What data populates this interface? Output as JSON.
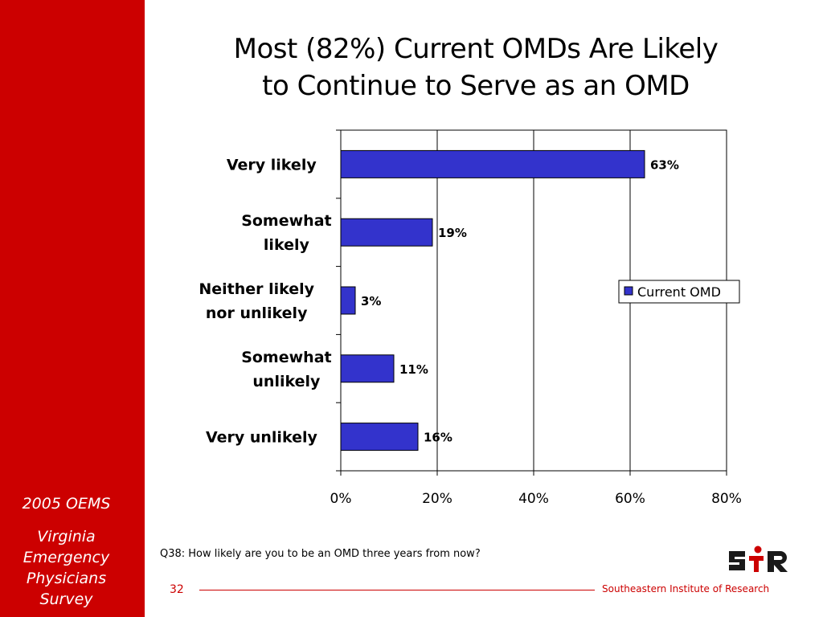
{
  "sidebar": {
    "title": "2005 OEMS",
    "subtitle_lines": [
      "Virginia",
      "Emergency",
      "Physicians",
      "Survey"
    ]
  },
  "slide": {
    "title_lines": [
      "Most (82%) Current OMDs Are Likely",
      "to Continue to Serve as an OMD"
    ]
  },
  "chart_data": {
    "type": "bar",
    "orientation": "horizontal",
    "categories": [
      [
        "Very likely"
      ],
      [
        "Somewhat",
        "likely"
      ],
      [
        "Neither likely",
        "nor unlikely"
      ],
      [
        "Somewhat",
        "unlikely"
      ],
      [
        "Very unlikely"
      ]
    ],
    "series": [
      {
        "name": "Current OMD",
        "values": [
          63,
          19,
          3,
          11,
          16
        ],
        "data_labels": [
          "63%",
          "19%",
          "3%",
          "11%",
          "16%"
        ]
      }
    ],
    "xlim": [
      0,
      80
    ],
    "x_ticks": [
      0,
      20,
      40,
      60,
      80
    ],
    "x_tick_labels": [
      "0%",
      "20%",
      "40%",
      "60%",
      "80%"
    ],
    "grid": "vertical",
    "legend_position": "right",
    "colors": {
      "bar": "#3333cc",
      "bar_stroke": "#000000"
    }
  },
  "footer": {
    "footnote": "Q38: How likely are you to be an OMD three years from now?",
    "page_number": "32",
    "organization": "Southeastern Institute of Research",
    "logo_text": "SIR"
  },
  "colors": {
    "accent": "#cc0000",
    "bar": "#3333cc"
  }
}
